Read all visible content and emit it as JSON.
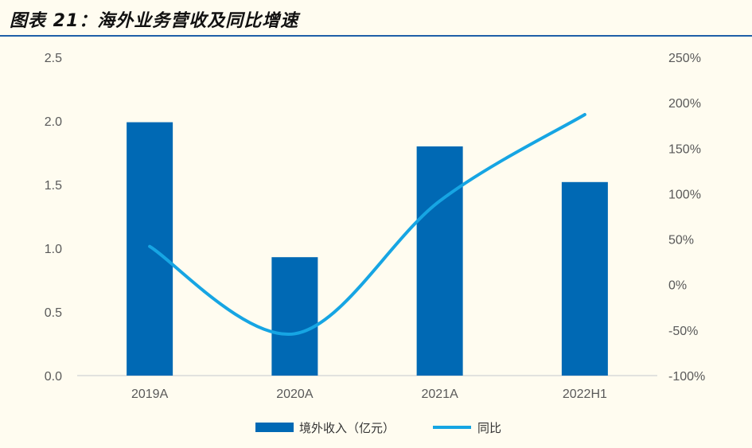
{
  "header": {
    "title": "图表 21：海外业务营收及同比增速"
  },
  "colors": {
    "bar": "#0069B4",
    "line": "#16A5E3",
    "axis": "#D9D9D9",
    "title_rule": "#1F5FA8"
  },
  "chart_data": {
    "type": "bar",
    "title": "图表 21：海外业务营收及同比增速",
    "categories": [
      "2019A",
      "2020A",
      "2021A",
      "2022H1"
    ],
    "series": [
      {
        "name": "境外收入（亿元）",
        "type": "bar",
        "axis": "left",
        "values": [
          1.99,
          0.93,
          1.8,
          1.52
        ]
      },
      {
        "name": "同比",
        "type": "line",
        "axis": "right",
        "smooth": true,
        "values": [
          42,
          -54,
          92,
          187
        ]
      }
    ],
    "y_left": {
      "lim": [
        0,
        2.5
      ],
      "ticks": [
        "0.0",
        "0.5",
        "1.0",
        "1.5",
        "2.0",
        "2.5"
      ]
    },
    "y_right": {
      "lim": [
        -100,
        250
      ],
      "ticks": [
        "-100%",
        "-50%",
        "0%",
        "50%",
        "100%",
        "150%",
        "200%",
        "250%"
      ]
    },
    "grid": false,
    "legend": "bottom-center"
  }
}
